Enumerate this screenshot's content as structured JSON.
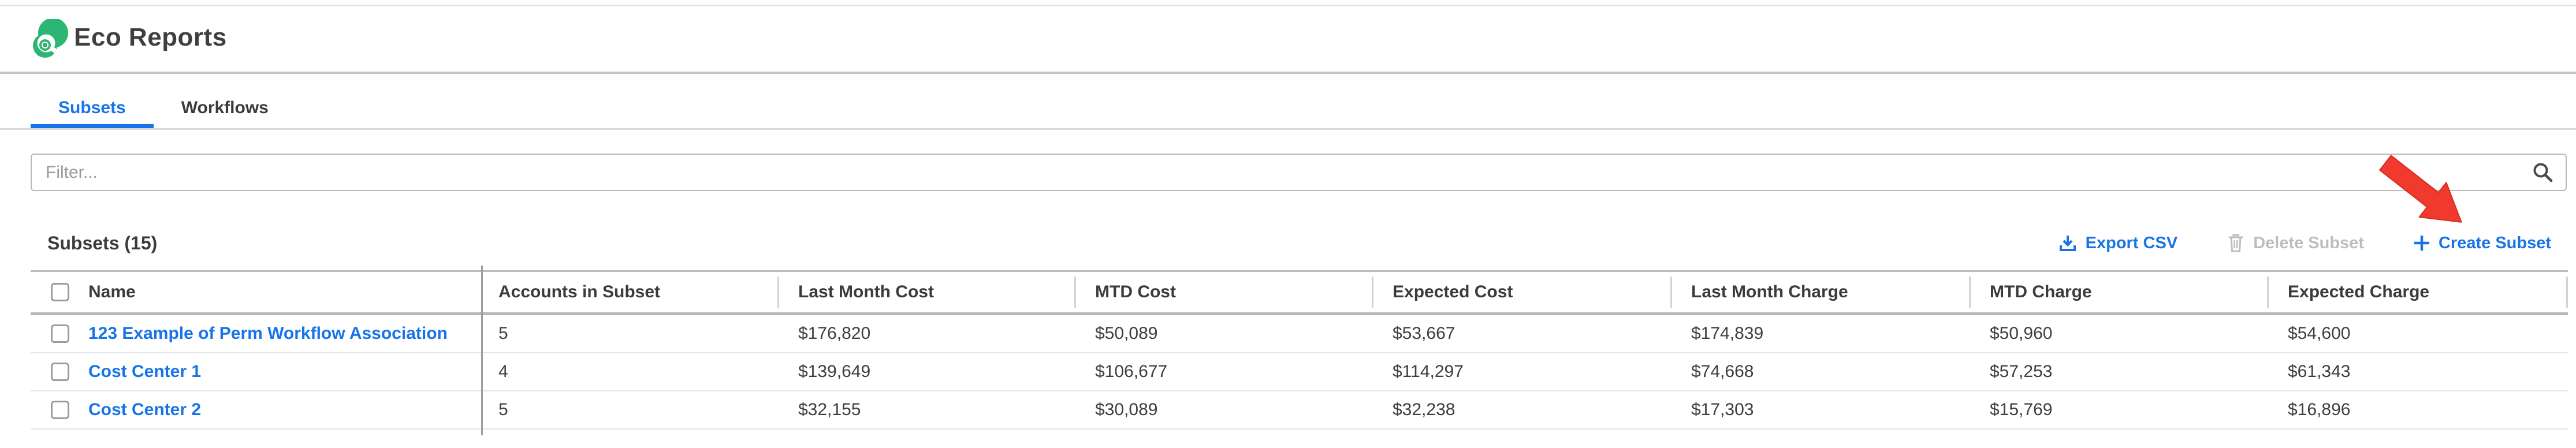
{
  "header": {
    "app_title": "Eco Reports"
  },
  "tabs": [
    {
      "label": "Subsets",
      "active": true
    },
    {
      "label": "Workflows",
      "active": false
    }
  ],
  "filter": {
    "placeholder": "Filter...",
    "value": ""
  },
  "toolbar": {
    "heading": "Subsets (15)",
    "export_csv_label": "Export CSV",
    "delete_subset_label": "Delete Subset",
    "create_subset_label": "Create Subset",
    "delete_subset_enabled": false
  },
  "icons": {
    "logo": "green-swirl-logo",
    "search": "magnifier",
    "export": "download-tray",
    "delete": "trash-can",
    "create": "plus"
  },
  "annotation": {
    "shape": "red-arrow",
    "points_to": "create-subset-button",
    "color": "#ef3a2d"
  },
  "table": {
    "columns": [
      "Name",
      "Accounts in Subset",
      "Last Month Cost",
      "MTD Cost",
      "Expected Cost",
      "Last Month Charge",
      "MTD Charge",
      "Expected Charge"
    ],
    "rows": [
      {
        "name": "123 Example of Perm Workflow Association",
        "accounts": "5",
        "last_month_cost": "$176,820",
        "mtd_cost": "$50,089",
        "expected_cost": "$53,667",
        "last_month_charge": "$174,839",
        "mtd_charge": "$50,960",
        "expected_charge": "$54,600"
      },
      {
        "name": "Cost Center 1",
        "accounts": "4",
        "last_month_cost": "$139,649",
        "mtd_cost": "$106,677",
        "expected_cost": "$114,297",
        "last_month_charge": "$74,668",
        "mtd_charge": "$57,253",
        "expected_charge": "$61,343"
      },
      {
        "name": "Cost Center 2",
        "accounts": "5",
        "last_month_cost": "$32,155",
        "mtd_cost": "$30,089",
        "expected_cost": "$32,238",
        "last_month_charge": "$17,303",
        "mtd_charge": "$15,769",
        "expected_charge": "$16,896"
      }
    ]
  },
  "colors": {
    "brand_green": "#2bb673",
    "accent_blue": "#1673e8",
    "arrow_red": "#ef3a2d"
  }
}
